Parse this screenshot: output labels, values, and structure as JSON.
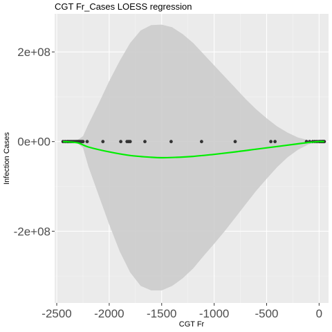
{
  "chart_data": {
    "type": "scatter",
    "title": "CGT Fr_Cases LOESS regression",
    "xlabel": "CGT Fr",
    "ylabel": "Infection Cases",
    "xlim": [
      -2520,
      90
    ],
    "ylim": [
      -360000000.0,
      285000000.0
    ],
    "x_ticks": [
      -2500,
      -2000,
      -1500,
      -1000,
      -500,
      0
    ],
    "x_tick_labels": [
      "-2500",
      "-2000",
      "-1500",
      "-1000",
      "-500",
      "0"
    ],
    "y_ticks": [
      -200000000.0,
      0,
      200000000.0
    ],
    "y_tick_labels": [
      "-2e+08",
      "0e+00",
      "2e+08"
    ],
    "grid": true,
    "points": {
      "x": [
        -2440,
        -2420,
        -2400,
        -2385,
        -2370,
        -2355,
        -2340,
        -2325,
        -2310,
        -2300,
        -2290,
        -2280,
        -2270,
        -2260,
        -2250,
        -2210,
        -2060,
        -1890,
        -1830,
        -1815,
        -1800,
        -1660,
        -1410,
        -1120,
        -800,
        -460,
        -420,
        -120,
        -90,
        -60,
        -40,
        -20,
        0,
        10,
        20,
        30,
        35,
        40,
        45,
        50
      ],
      "y": [
        0,
        0,
        0,
        0,
        0,
        0,
        0,
        0,
        0,
        0,
        0,
        0,
        0,
        0,
        0,
        0,
        0,
        0,
        0,
        0,
        0,
        0,
        0,
        0,
        0,
        0,
        0,
        0,
        0,
        0,
        0,
        0,
        0,
        0,
        0,
        0,
        0,
        0,
        0,
        0
      ],
      "color": "#333333"
    },
    "loess": {
      "x": [
        -2440,
        -2300,
        -2200,
        -2000,
        -1800,
        -1600,
        -1500,
        -1400,
        -1200,
        -1000,
        -800,
        -600,
        -400,
        -200,
        -100,
        0,
        50
      ],
      "y": [
        0,
        -3000000.0,
        -12000000.0,
        -23000000.0,
        -31000000.0,
        -35000000.0,
        -36000000.0,
        -35500000.0,
        -33000000.0,
        -28500000.0,
        -23000000.0,
        -17000000.0,
        -11000000.0,
        -5000000.0,
        -2000000.0,
        0,
        0
      ],
      "color": "#00ee00"
    },
    "ribbon": {
      "x": [
        -2440,
        -2300,
        -2250,
        -2200,
        -2100,
        -2000,
        -1900,
        -1800,
        -1700,
        -1600,
        -1500,
        -1400,
        -1300,
        -1200,
        -1100,
        -1000,
        -900,
        -800,
        -700,
        -600,
        -500,
        -400,
        -300,
        -200,
        -100,
        0,
        50
      ],
      "ymax": [
        3000000.0,
        4000000.0,
        12000000.0,
        38000000.0,
        85000000.0,
        135000000.0,
        180000000.0,
        220000000.0,
        248000000.0,
        260000000.0,
        261000000.0,
        255000000.0,
        240000000.0,
        220000000.0,
        195000000.0,
        170000000.0,
        145000000.0,
        120000000.0,
        95000000.0,
        72000000.0,
        52000000.0,
        34000000.0,
        20000000.0,
        9000000.0,
        3000000.0,
        1000000.0,
        1000000.0
      ],
      "ymin": [
        -3000000.0,
        -4000000.0,
        -14000000.0,
        -55000000.0,
        -120000000.0,
        -185000000.0,
        -245000000.0,
        -292000000.0,
        -322000000.0,
        -332000000.0,
        -332000000.0,
        -322000000.0,
        -305000000.0,
        -283000000.0,
        -255000000.0,
        -228000000.0,
        -200000000.0,
        -170000000.0,
        -140000000.0,
        -110000000.0,
        -83000000.0,
        -57000000.0,
        -35000000.0,
        -18000000.0,
        -6000000.0,
        -1000000.0,
        -1000000.0
      ],
      "color": "#cccccc"
    }
  }
}
